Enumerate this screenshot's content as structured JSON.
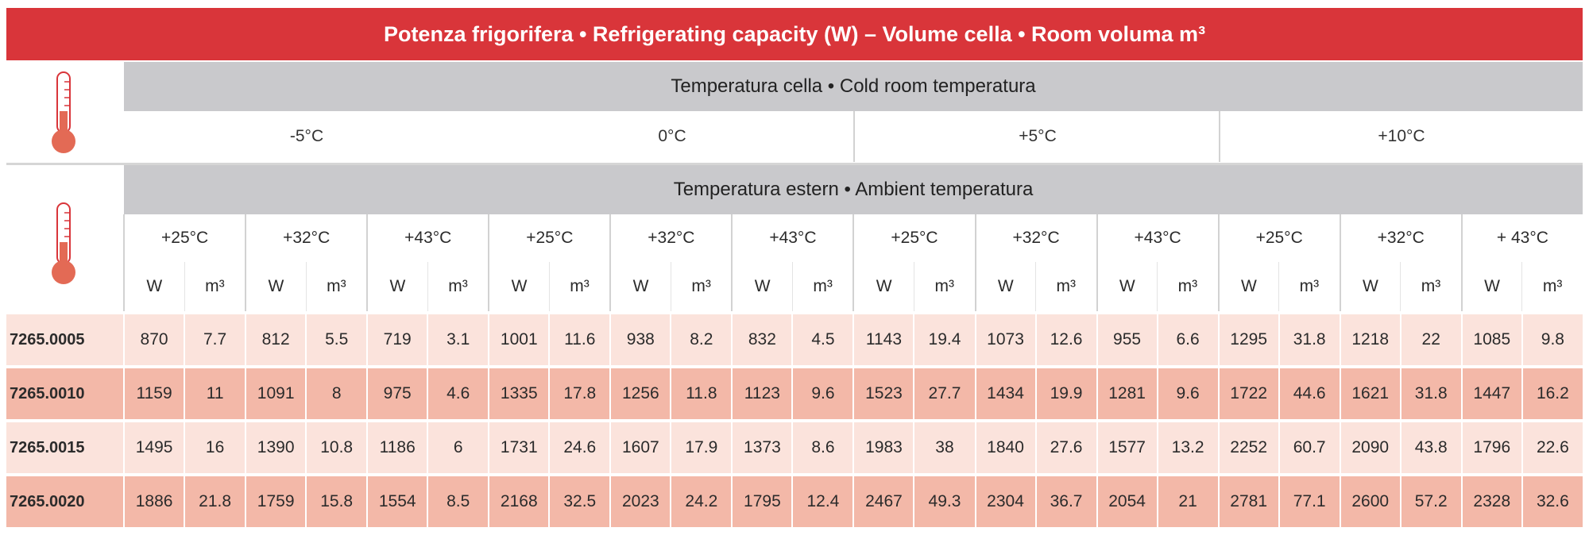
{
  "title": "Potenza frigorifera • Refrigerating capacity (W) – Volume cella • Room voluma m³",
  "room_temp_label": "Temperatura cella • Cold room temperatura",
  "ambient_temp_label": "Temperatura estern • Ambient temperatura",
  "icons": {
    "thermometer": "thermometer-icon"
  },
  "colors": {
    "accent": "#d9353a",
    "band": "#c9c9cc",
    "row_light": "#fbe3dc",
    "row_dark": "#f3b8a8"
  },
  "room_temps": [
    "-5°C",
    "0°C",
    "+5°C",
    "+10°C"
  ],
  "ambient_temps": [
    "+25°C",
    "+32°C",
    "+43°C",
    "+25°C",
    "+32°C",
    "+43°C",
    "+25°C",
    "+32°C",
    "+43°C",
    "+25°C",
    "+32°C",
    "+ 43°C"
  ],
  "unit_w": "W",
  "unit_m3": "m³",
  "rows": [
    {
      "code": "7265.0005",
      "values": [
        "870",
        "7.7",
        "812",
        "5.5",
        "719",
        "3.1",
        "1001",
        "11.6",
        "938",
        "8.2",
        "832",
        "4.5",
        "1143",
        "19.4",
        "1073",
        "12.6",
        "955",
        "6.6",
        "1295",
        "31.8",
        "1218",
        "22",
        "1085",
        "9.8"
      ]
    },
    {
      "code": "7265.0010",
      "values": [
        "1159",
        "11",
        "1091",
        "8",
        "975",
        "4.6",
        "1335",
        "17.8",
        "1256",
        "11.8",
        "1123",
        "9.6",
        "1523",
        "27.7",
        "1434",
        "19.9",
        "1281",
        "9.6",
        "1722",
        "44.6",
        "1621",
        "31.8",
        "1447",
        "16.2"
      ]
    },
    {
      "code": "7265.0015",
      "values": [
        "1495",
        "16",
        "1390",
        "10.8",
        "1186",
        "6",
        "1731",
        "24.6",
        "1607",
        "17.9",
        "1373",
        "8.6",
        "1983",
        "38",
        "1840",
        "27.6",
        "1577",
        "13.2",
        "2252",
        "60.7",
        "2090",
        "43.8",
        "1796",
        "22.6"
      ]
    },
    {
      "code": "7265.0020",
      "values": [
        "1886",
        "21.8",
        "1759",
        "15.8",
        "1554",
        "8.5",
        "2168",
        "32.5",
        "2023",
        "24.2",
        "1795",
        "12.4",
        "2467",
        "49.3",
        "2304",
        "36.7",
        "2054",
        "21",
        "2781",
        "77.1",
        "2600",
        "57.2",
        "2328",
        "32.6"
      ]
    }
  ]
}
